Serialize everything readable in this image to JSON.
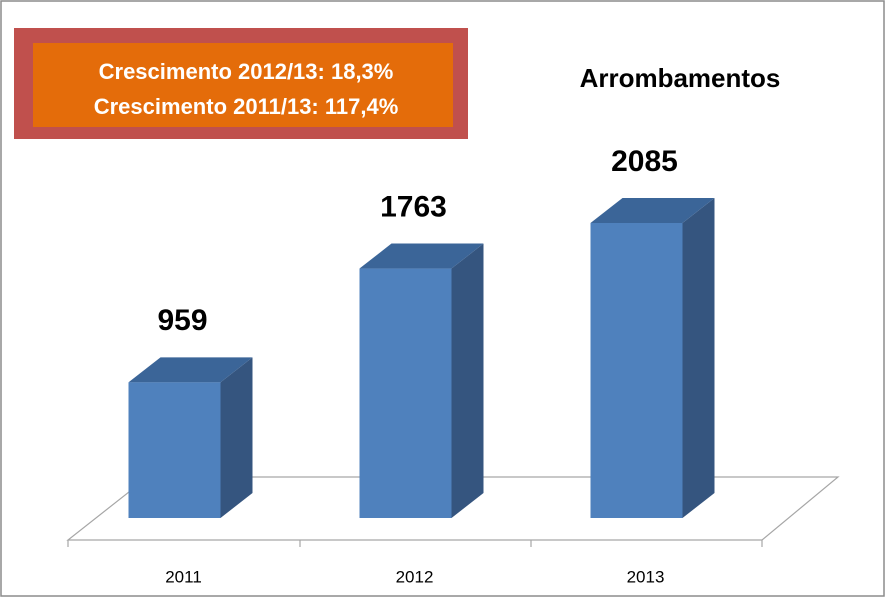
{
  "chart_data": {
    "type": "bar",
    "title": "Arrombamentos",
    "annotation": [
      "Crescimento 2012/13: 18,3%",
      "Crescimento 2011/13: 117,4%"
    ],
    "categories": [
      "2011",
      "2012",
      "2013"
    ],
    "values": [
      959,
      1763,
      2085
    ],
    "color": "#4f81bd"
  }
}
